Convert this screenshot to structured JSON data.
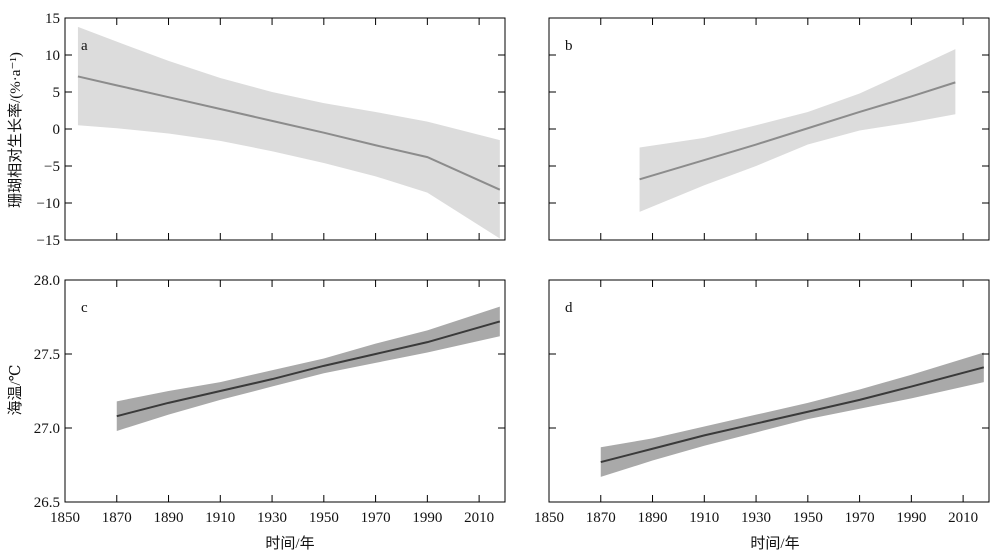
{
  "chart_data": [
    {
      "type": "line",
      "panel": "a",
      "xlim": [
        1850,
        2020
      ],
      "ylim": [
        -15,
        15
      ],
      "yticks": [
        -15,
        -10,
        -5,
        0,
        5,
        10,
        15
      ],
      "yticklabels": [
        "−15",
        "−10",
        "−5",
        "0",
        "5",
        "10",
        "15"
      ],
      "xticks": [
        1850,
        1870,
        1890,
        1910,
        1930,
        1950,
        1970,
        1990,
        2010
      ],
      "xticklabels": [],
      "line_color": "#8c8c8c",
      "band_color": "#dcdcdc",
      "series": [
        {
          "x": [
            1855,
            1870,
            1890,
            1910,
            1930,
            1950,
            1970,
            1990,
            2018
          ],
          "values": [
            7.1,
            5.9,
            4.3,
            2.7,
            1.1,
            -0.5,
            -2.2,
            -3.8,
            -8.2
          ],
          "lower": [
            0.5,
            0.1,
            -0.6,
            -1.6,
            -3.0,
            -4.6,
            -6.4,
            -8.6,
            -14.8
          ],
          "upper": [
            13.8,
            11.8,
            9.2,
            6.9,
            5.0,
            3.5,
            2.3,
            1.0,
            -1.5
          ]
        }
      ]
    },
    {
      "type": "line",
      "panel": "b",
      "xlim": [
        1850,
        2020
      ],
      "ylim": [
        -15,
        15
      ],
      "yticks": [
        -15,
        -10,
        -5,
        0,
        5,
        10,
        15
      ],
      "yticklabels": [],
      "xticks": [
        1850,
        1870,
        1890,
        1910,
        1930,
        1950,
        1970,
        1990,
        2010
      ],
      "xticklabels": [],
      "line_color": "#8c8c8c",
      "band_color": "#dcdcdc",
      "series": [
        {
          "x": [
            1885,
            1910,
            1930,
            1950,
            1970,
            1990,
            2007
          ],
          "values": [
            -6.8,
            -4.2,
            -2.1,
            0.1,
            2.3,
            4.4,
            6.3
          ],
          "lower": [
            -11.2,
            -7.6,
            -5.0,
            -2.1,
            -0.2,
            0.9,
            2.0
          ],
          "upper": [
            -2.5,
            -1.2,
            0.5,
            2.3,
            4.8,
            8.0,
            10.8
          ]
        }
      ]
    },
    {
      "type": "line",
      "panel": "c",
      "xlim": [
        1850,
        2020
      ],
      "ylim": [
        26.5,
        28.0
      ],
      "yticks": [
        26.5,
        27.0,
        27.5,
        28.0
      ],
      "yticklabels": [
        "26.5",
        "27.0",
        "27.5",
        "28.0"
      ],
      "xticks": [
        1850,
        1870,
        1890,
        1910,
        1930,
        1950,
        1970,
        1990,
        2010
      ],
      "xticklabels": [
        "1850",
        "1870",
        "1890",
        "1910",
        "1930",
        "1950",
        "1970",
        "1990",
        "2010"
      ],
      "line_color": "#3a3a3a",
      "band_color": "#a9a9a9",
      "series": [
        {
          "x": [
            1870,
            1890,
            1910,
            1930,
            1950,
            1970,
            1990,
            2018
          ],
          "values": [
            27.08,
            27.17,
            27.25,
            27.33,
            27.42,
            27.5,
            27.58,
            27.72
          ],
          "lower": [
            26.98,
            27.09,
            27.19,
            27.28,
            27.37,
            27.44,
            27.51,
            27.62
          ],
          "upper": [
            27.18,
            27.25,
            27.31,
            27.39,
            27.47,
            27.57,
            27.66,
            27.82
          ]
        }
      ]
    },
    {
      "type": "line",
      "panel": "d",
      "xlim": [
        1850,
        2020
      ],
      "ylim": [
        26.5,
        28.0
      ],
      "yticks": [
        26.5,
        27.0,
        27.5,
        28.0
      ],
      "yticklabels": [],
      "xticks": [
        1850,
        1870,
        1890,
        1910,
        1930,
        1950,
        1970,
        1990,
        2010
      ],
      "xticklabels": [
        "1850",
        "1870",
        "1890",
        "1910",
        "1930",
        "1950",
        "1970",
        "1990",
        "2010"
      ],
      "line_color": "#3a3a3a",
      "band_color": "#a9a9a9",
      "series": [
        {
          "x": [
            1870,
            1890,
            1910,
            1930,
            1950,
            1970,
            1990,
            2018
          ],
          "values": [
            26.77,
            26.86,
            26.95,
            27.03,
            27.11,
            27.19,
            27.28,
            27.41
          ],
          "lower": [
            26.67,
            26.78,
            26.88,
            26.97,
            27.06,
            27.13,
            27.2,
            27.31
          ],
          "upper": [
            26.87,
            26.93,
            27.01,
            27.09,
            27.17,
            27.26,
            27.36,
            27.51
          ]
        }
      ]
    }
  ],
  "labels": {
    "ylabel_top": "珊瑚相对生长率/(%·a⁻¹)",
    "ylabel_bottom": "海温/℃",
    "xlabel_left": "时间/年",
    "xlabel_right": "时间/年"
  }
}
